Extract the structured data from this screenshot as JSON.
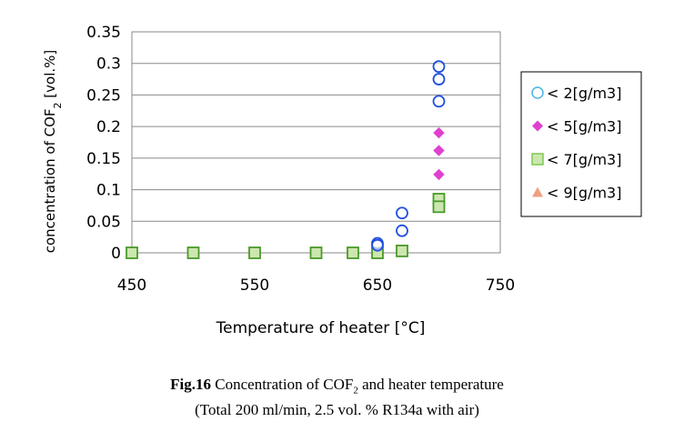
{
  "chart_data": {
    "type": "scatter",
    "xlabel": "Temperature of heater [°C]",
    "ylabel_parts": {
      "before": "concentration of COF",
      "sub": "2",
      "after": " [vol.%]"
    },
    "xlim": [
      450,
      750
    ],
    "ylim": [
      0,
      0.35
    ],
    "x_ticks": [
      "450",
      "550",
      "650",
      "750"
    ],
    "y_ticks": [
      "0",
      "0.05",
      "0.1",
      "0.15",
      "0.2",
      "0.25",
      "0.3",
      "0.35"
    ],
    "grid": "horizontal",
    "legend_position": "right",
    "series": [
      {
        "name": "< 2[g/m3]",
        "marker": "circle",
        "color": "#1f4fe0",
        "legend_color": "#4fb3e8",
        "points": [
          [
            650,
            0.015
          ],
          [
            650,
            0.012
          ],
          [
            670,
            0.063
          ],
          [
            670,
            0.035
          ],
          [
            700,
            0.295
          ],
          [
            700,
            0.275
          ],
          [
            700,
            0.24
          ]
        ]
      },
      {
        "name": "< 5[g/m3]",
        "marker": "diamond",
        "color": "#e040d0",
        "legend_color": "#e040d0",
        "points": [
          [
            700,
            0.19
          ],
          [
            700,
            0.162
          ],
          [
            700,
            0.124
          ]
        ]
      },
      {
        "name": "< 7[g/m3]",
        "marker": "square",
        "color": "#4a9a2a",
        "legend_color": "#7ec850",
        "points": [
          [
            450,
            0
          ],
          [
            500,
            0
          ],
          [
            550,
            0
          ],
          [
            600,
            0
          ],
          [
            630,
            0
          ],
          [
            650,
            0
          ],
          [
            670,
            0.003
          ],
          [
            700,
            0.085
          ],
          [
            700,
            0.073
          ]
        ]
      },
      {
        "name": "< 9[g/m3]",
        "marker": "triangle",
        "color": "#f0a080",
        "legend_color": "#f0a080",
        "points": []
      }
    ]
  },
  "caption": {
    "label": "Fig.16",
    "line1_text": " Concentration of COF",
    "line1_sub": "2",
    "line1_after": " and heater temperature",
    "line2": "(Total 200 ml/min, 2.5 vol. % R134a with air)"
  }
}
